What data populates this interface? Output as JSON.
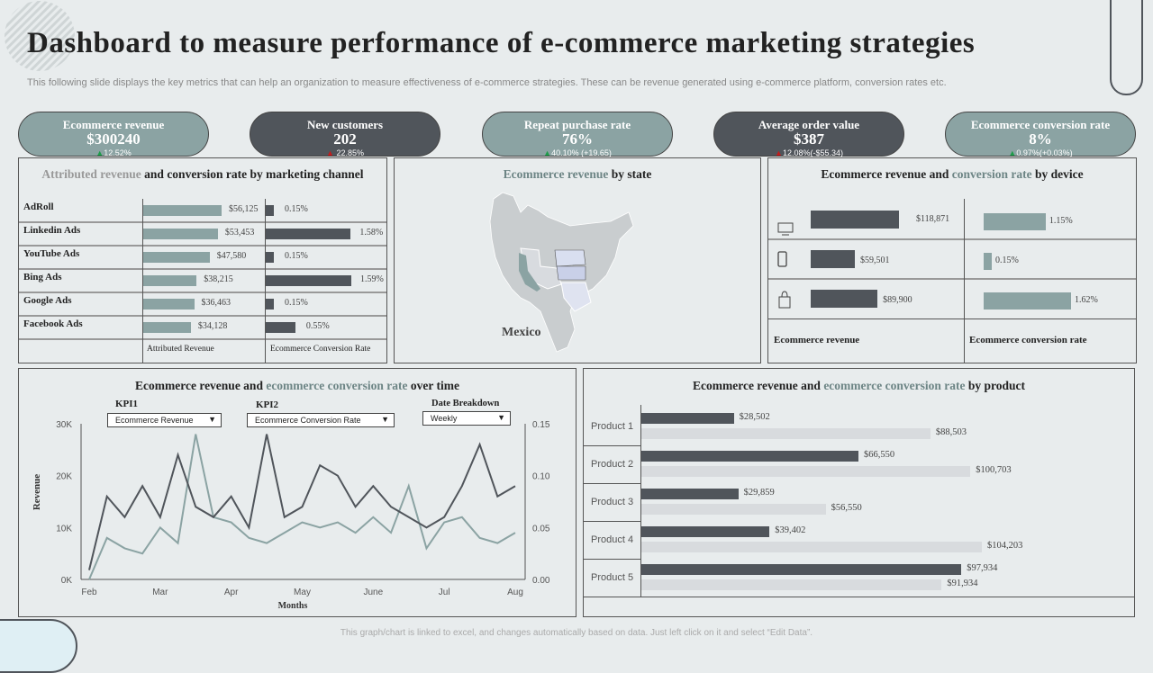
{
  "title": "Dashboard to measure performance of e-commerce marketing strategies",
  "subtitle": "This following slide displays the key metrics that can help an organization to measure effectiveness of e-commerce strategies. These can be revenue generated using e-commerce platform, conversion rates etc.",
  "kpis": [
    {
      "label": "Ecommerce  revenue",
      "value": "$300240",
      "change": "12.52%",
      "trend": "up",
      "color": "#8ba3a3"
    },
    {
      "label": "New  customers",
      "value": "202",
      "change": " 22.85%",
      "trend": "down",
      "color": "#50555b"
    },
    {
      "label": "Repeat  purchase  rate",
      "value": "76%",
      "change": "40.10% (+19.65)",
      "trend": "up",
      "color": "#8ba3a3"
    },
    {
      "label": "Average  order  value",
      "value": "$387",
      "change": "12.08%(-$55.34)",
      "trend": "down",
      "color": "#50555b"
    },
    {
      "label": "Ecommerce  conversion  rate",
      "value": "8%",
      "change": "0.97%(+0.03%)",
      "trend": "up",
      "color": "#8ba3a3"
    }
  ],
  "channel": {
    "title_a": "Attributed revenue",
    "title_b": " and conversion rate by marketing channel",
    "col_revenue": "Attributed Revenue",
    "col_conv": "Ecommerce Conversion Rate",
    "rows": [
      {
        "name": "AdRoll",
        "revenue": 56125,
        "revenue_label": "$56,125",
        "conv": 0.15,
        "conv_label": "0.15%"
      },
      {
        "name": "Linkedin Ads",
        "revenue": 53453,
        "revenue_label": "$53,453",
        "conv": 1.58,
        "conv_label": "1.58%"
      },
      {
        "name": "YouTube Ads",
        "revenue": 47580,
        "revenue_label": "$47,580",
        "conv": 0.15,
        "conv_label": "0.15%"
      },
      {
        "name": "Bing Ads",
        "revenue": 38215,
        "revenue_label": "$38,215",
        "conv": 1.59,
        "conv_label": "1.59%"
      },
      {
        "name": "Google Ads",
        "revenue": 36463,
        "revenue_label": "$36,463",
        "conv": 0.15,
        "conv_label": "0.15%"
      },
      {
        "name": "Facebook Ads",
        "revenue": 34128,
        "revenue_label": "$34,128",
        "conv": 0.55,
        "conv_label": "0.55%"
      }
    ]
  },
  "state": {
    "title_a": "Ecommerce revenue",
    "title_b": " by state",
    "map_label": "Mexico"
  },
  "device": {
    "title_a": "Ecommerce revenue and ",
    "title_b": "conversion rate",
    "title_c": " by device",
    "col_revenue": "Ecommerce revenue",
    "col_conv": "Ecommerce conversion rate",
    "rows": [
      {
        "icon": "desktop-icon",
        "revenue": 118871,
        "revenue_label": "$118,871",
        "conv": 1.15,
        "conv_label": "1.15%"
      },
      {
        "icon": "mobile-icon",
        "revenue": 59501,
        "revenue_label": "$59,501",
        "conv": 0.15,
        "conv_label": "0.15%"
      },
      {
        "icon": "shopping-bag-icon",
        "revenue": 89900,
        "revenue_label": "$89,900",
        "conv": 1.62,
        "conv_label": "1.62%"
      }
    ]
  },
  "chart_data": [
    {
      "type": "line",
      "title": "Ecommerce revenue and ecommerce conversion rate over time",
      "title_a": "Ecommerce revenue and ",
      "title_b": "ecommerce conversion rate",
      "title_c": " over time",
      "xlabel": "Months",
      "ylabel": "Revenue",
      "x_ticks": [
        "Feb",
        "Mar",
        "Apr",
        "May",
        "June",
        "Jul",
        "Aug"
      ],
      "y_ticks": [
        "0K",
        "10K",
        "20K",
        "30K"
      ],
      "y2_ticks": [
        "0.00",
        "0.05",
        "0.10",
        "0.15"
      ],
      "ylim": [
        0,
        30000
      ],
      "y2lim": [
        0,
        0.15
      ],
      "grid": false,
      "series": [
        {
          "axis": "left",
          "color": "#50555b",
          "values": [
            1800,
            16000,
            12000,
            18000,
            12000,
            24000,
            14000,
            12000,
            16000,
            10000,
            28000,
            12000,
            14000,
            22000,
            20000,
            14000,
            18000,
            14000,
            12000,
            10000,
            12000,
            18000,
            26000,
            16000,
            18000
          ]
        },
        {
          "axis": "right",
          "color": "#8ba3a3",
          "values": [
            0,
            0.04,
            0.03,
            0.025,
            0.05,
            0.035,
            0.14,
            0.06,
            0.055,
            0.04,
            0.035,
            0.045,
            0.055,
            0.05,
            0.055,
            0.045,
            0.06,
            0.045,
            0.09,
            0.03,
            0.055,
            0.06,
            0.04,
            0.035,
            0.045
          ]
        }
      ],
      "controls": {
        "kpi1_label": "KPI1",
        "kpi1_value": "Ecommerce Revenue",
        "kpi2_label": "KPI2",
        "kpi2_value": "Ecommerce Conversion Rate",
        "date_label": "Date Breakdown",
        "date_value": "Weekly"
      }
    },
    {
      "type": "bar",
      "orientation": "horizontal",
      "title_a": "Ecommerce revenue and ",
      "title_b": "ecommerce conversion rate",
      "title_c": " by product",
      "categories": [
        "Product 1",
        "Product 2",
        "Product 3",
        "Product 4",
        "Product 5"
      ],
      "series": [
        {
          "color": "#50555b",
          "values": [
            28502,
            66550,
            29859,
            39402,
            97934
          ],
          "labels": [
            "$28,502",
            "$66,550",
            "$29,859",
            "$39,402",
            "$97,934"
          ]
        },
        {
          "color": "#d8dbde",
          "values": [
            88503,
            100703,
            56550,
            104203,
            91934
          ],
          "labels": [
            "$88,503",
            "$100,703",
            "$56,550",
            "$104,203",
            "$91,934"
          ]
        }
      ]
    }
  ],
  "footer": "This graph/chart is linked to excel, and changes automatically based on data. Just left click on it and select “Edit Data”."
}
